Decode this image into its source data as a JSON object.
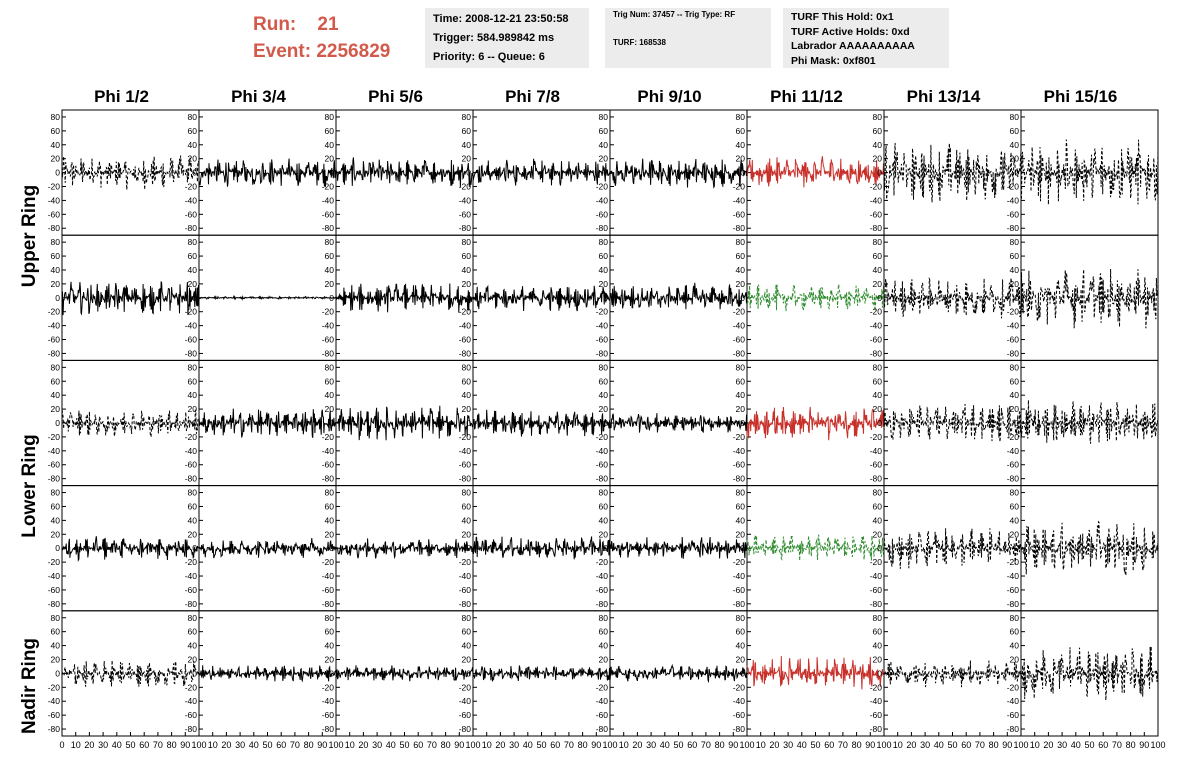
{
  "header": {
    "run_label": "Run:",
    "run_value": "21",
    "event_label": "Event:",
    "event_value": "2256829"
  },
  "time_box": {
    "time": "Time: 2008-12-21 23:50:58",
    "trigger": "Trigger: 584.989842 ms",
    "priority": "Priority: 6 -- Queue: 6"
  },
  "trig_box": {
    "trig": "Trig Num: 37457 -- Trig Type: RF",
    "turf": "TURF: 168538"
  },
  "turf_box": {
    "this_hold": "TURF This Hold: 0x1",
    "active_holds": "TURF Active Holds: 0xd",
    "labrador": "Labrador AAAAAAAAAA",
    "phi_mask": "Phi Mask: 0xf801"
  },
  "columns": [
    "Phi 1/2",
    "Phi 3/4",
    "Phi 5/6",
    "Phi 7/8",
    "Phi 9/10",
    "Phi 11/12",
    "Phi 13/14",
    "Phi 15/16"
  ],
  "rings": [
    "Upper Ring",
    "Lower Ring",
    "Nadir Ring"
  ],
  "colors": {
    "run_info": "#d25a4a",
    "trace_normal": "#000000",
    "trace_highlight_red": "#c8302a",
    "trace_highlight_green": "#2e8b2e",
    "info_box_bg": "#ececec"
  },
  "chart_data": {
    "type": "line",
    "rows": 5,
    "cols": 8,
    "xlim": [
      0,
      100
    ],
    "ylim": [
      -90,
      90
    ],
    "x_ticks": [
      "0",
      "10",
      "20",
      "30",
      "40",
      "50",
      "60",
      "70",
      "80",
      "90",
      "100"
    ],
    "y_ticks": [
      "80",
      "60",
      "40",
      "20",
      "0",
      "-20",
      "-40",
      "-60",
      "-80"
    ],
    "amplitude_estimate": [
      [
        25,
        22,
        22,
        20,
        22,
        24,
        45,
        50
      ],
      [
        25,
        2,
        22,
        20,
        22,
        20,
        30,
        45
      ],
      [
        20,
        22,
        25,
        20,
        15,
        25,
        30,
        35
      ],
      [
        18,
        15,
        15,
        18,
        18,
        20,
        30,
        40
      ],
      [
        20,
        12,
        12,
        12,
        12,
        25,
        20,
        40
      ]
    ],
    "trace_style": [
      [
        "dashed",
        "solid",
        "solid",
        "solid",
        "solid",
        "red",
        "dashed",
        "dashed"
      ],
      [
        "solid",
        "solid",
        "solid",
        "solid",
        "solid",
        "green",
        "dashed",
        "dashed"
      ],
      [
        "dashed",
        "solid",
        "solid",
        "solid",
        "solid",
        "red",
        "dashed",
        "dashed"
      ],
      [
        "solid",
        "solid",
        "solid",
        "solid",
        "solid",
        "green",
        "dashed",
        "dashed"
      ],
      [
        "dashed",
        "solid",
        "solid",
        "solid",
        "solid",
        "red",
        "dashed",
        "dashed"
      ]
    ]
  }
}
